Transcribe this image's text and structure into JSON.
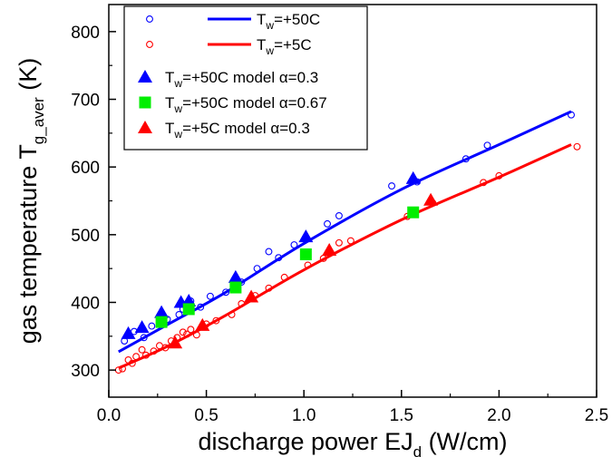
{
  "chart_data": {
    "type": "scatter",
    "xlabel": "discharge power EJ",
    "xlabel_sub": "d",
    "xlabel_unit": " (W/cm)",
    "ylabel": "gas temperature T",
    "ylabel_sub": "g_aver",
    "ylabel_unit": " (K)",
    "xlim": [
      0.0,
      2.5
    ],
    "ylim": [
      260,
      840
    ],
    "xticks": [
      "0.0",
      "0.5",
      "1.0",
      "1.5",
      "2.0",
      "2.5"
    ],
    "yticks": [
      "300",
      "400",
      "500",
      "600",
      "700",
      "800"
    ],
    "grid": false,
    "legend_position": "top-left",
    "colors": {
      "blue": "#0000ff",
      "red": "#ff0000",
      "green": "#00ee00"
    },
    "legend": [
      {
        "label": "T",
        "sub": "w",
        "rest": "=+50C",
        "marker": "open-circle",
        "color": "#0000ff"
      },
      {
        "label": "T",
        "sub": "w",
        "rest": "=+5C",
        "marker": "open-circle",
        "color": "#ff0000"
      },
      {
        "label": "T",
        "sub": "w",
        "rest": "=+50C model α=0.3",
        "marker": "triangle",
        "color": "#0000ff"
      },
      {
        "label": "T",
        "sub": "w",
        "rest": "=+50C model α=0.67",
        "marker": "square",
        "color": "#00ee00"
      },
      {
        "label": "T",
        "sub": "w",
        "rest": "=+5C model α=0.3",
        "marker": "triangle",
        "color": "#ff0000"
      }
    ],
    "series": [
      {
        "name": "Tw=+50C",
        "kind": "points",
        "marker": "open-circle",
        "color": "#0000ff",
        "x": [
          0.08,
          0.13,
          0.18,
          0.22,
          0.26,
          0.3,
          0.36,
          0.38,
          0.42,
          0.47,
          0.52,
          0.6,
          0.68,
          0.76,
          0.82,
          0.87,
          0.95,
          1.12,
          1.18,
          1.45,
          1.58,
          1.83,
          1.94,
          2.37
        ],
        "y": [
          343,
          357,
          348,
          365,
          372,
          375,
          382,
          390,
          402,
          393,
          409,
          415,
          430,
          450,
          475,
          466,
          485,
          516,
          528,
          572,
          578,
          612,
          632,
          677
        ]
      },
      {
        "name": "Tw=+5C",
        "kind": "points",
        "marker": "open-circle",
        "color": "#ff0000",
        "x": [
          0.05,
          0.07,
          0.1,
          0.12,
          0.14,
          0.17,
          0.19,
          0.23,
          0.26,
          0.29,
          0.32,
          0.35,
          0.38,
          0.4,
          0.42,
          0.45,
          0.5,
          0.55,
          0.63,
          0.68,
          0.75,
          0.82,
          0.9,
          1.02,
          1.1,
          1.18,
          1.24,
          1.53,
          1.66,
          1.92,
          2.0,
          2.4
        ],
        "y": [
          300,
          302,
          315,
          310,
          320,
          330,
          322,
          328,
          336,
          333,
          343,
          348,
          356,
          353,
          360,
          352,
          368,
          373,
          382,
          398,
          410,
          421,
          437,
          455,
          465,
          488,
          491,
          527,
          547,
          577,
          587,
          630
        ]
      },
      {
        "name": "Tw=+50C fit",
        "kind": "line",
        "color": "#0000ff",
        "x": [
          0.05,
          0.3,
          0.6,
          1.0,
          1.5,
          2.0,
          2.37
        ],
        "y": [
          327,
          367,
          415,
          487,
          567,
          633,
          682
        ]
      },
      {
        "name": "Tw=+5C fit",
        "kind": "line",
        "color": "#ff0000",
        "x": [
          0.05,
          0.3,
          0.6,
          1.0,
          1.5,
          2.0,
          2.37
        ],
        "y": [
          303,
          335,
          381,
          448,
          522,
          585,
          633
        ]
      },
      {
        "name": "Tw=+50C model α=0.3",
        "kind": "points",
        "marker": "triangle",
        "color": "#0000ff",
        "x": [
          0.1,
          0.17,
          0.27,
          0.37,
          0.41,
          0.65,
          1.01,
          1.56
        ],
        "y": [
          354,
          363,
          385,
          400,
          402,
          437,
          497,
          583
        ]
      },
      {
        "name": "Tw=+50C model α=0.67",
        "kind": "points",
        "marker": "square",
        "color": "#00ee00",
        "x": [
          0.27,
          0.41,
          0.65,
          1.01,
          1.56
        ],
        "y": [
          371,
          390,
          422,
          471,
          533
        ]
      },
      {
        "name": "Tw=+5C model α=0.3",
        "kind": "points",
        "marker": "triangle",
        "color": "#ff0000",
        "x": [
          0.34,
          0.48,
          0.73,
          1.13,
          1.65
        ],
        "y": [
          340,
          366,
          408,
          477,
          551
        ]
      }
    ]
  }
}
